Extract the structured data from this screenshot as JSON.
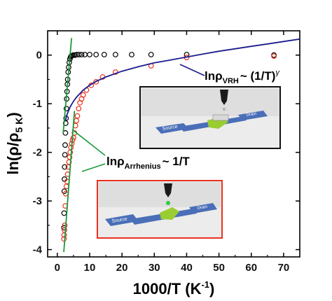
{
  "chart_data": {
    "type": "scatter",
    "xlabel_main": "1000/T (K",
    "xlabel_sup": "-1",
    "xlabel_close": ")",
    "ylabel_main": "ln(ρ/ρ",
    "ylabel_sub": "5 K",
    "ylabel_close": ")",
    "xlim": [
      -3,
      75
    ],
    "ylim": [
      -4.15,
      0.5
    ],
    "x_ticks": [
      0,
      10,
      20,
      30,
      40,
      50,
      60,
      70
    ],
    "x_tick_labels": [
      "0",
      "10",
      "20",
      "30",
      "40",
      "50",
      "60",
      "70"
    ],
    "y_ticks": [
      0,
      -1,
      -2,
      -3,
      -4
    ],
    "y_tick_labels": [
      "0",
      "-1",
      "-2",
      "-3",
      "-4"
    ],
    "series": [
      {
        "marker": "open-circle",
        "color": "#000000",
        "x": [
          2.05,
          2.1,
          2.15,
          2.2,
          2.27,
          2.35,
          2.42,
          2.5,
          2.6,
          2.7,
          2.8,
          2.9,
          3.0,
          3.1,
          3.2,
          3.35,
          3.5,
          3.7,
          3.9,
          4.1,
          4.3,
          4.6,
          5.0,
          5.5,
          6.0,
          6.7,
          7.5,
          8.5,
          10.0,
          12.0,
          14.5,
          18.0,
          23.0,
          29.0,
          40.0,
          67.0
        ],
        "y": [
          -3.55,
          -3.25,
          -2.8,
          -2.55,
          -2.3,
          -2.05,
          -1.85,
          -1.6,
          -1.4,
          -1.3,
          -1.1,
          -0.9,
          -0.75,
          -0.6,
          -0.5,
          -0.35,
          -0.25,
          -0.15,
          -0.08,
          -0.04,
          -0.02,
          -0.01,
          0.0,
          0.0,
          0.01,
          0.01,
          0.01,
          0.01,
          0.01,
          0.01,
          0.01,
          0.01,
          0.01,
          0.01,
          0.01,
          0.0
        ]
      },
      {
        "marker": "open-circle",
        "color": "#e8321e",
        "x": [
          2.05,
          2.12,
          2.2,
          2.3,
          2.45,
          2.6,
          2.8,
          3.0,
          3.2,
          3.4,
          3.6,
          3.8,
          4.0,
          4.2,
          4.45,
          4.7,
          5.0,
          5.3,
          5.6,
          5.9,
          6.2,
          6.6,
          7.0,
          7.5,
          8.0,
          9.0,
          10.5,
          12.0,
          14.0,
          18.0,
          29.0,
          40.0,
          67.0
        ],
        "y": [
          -3.78,
          -3.7,
          -3.6,
          -3.5,
          -3.1,
          -2.85,
          -2.7,
          -2.6,
          -2.45,
          -2.3,
          -2.2,
          -2.1,
          -2.0,
          -1.9,
          -1.82,
          -1.75,
          -1.7,
          -1.6,
          -1.45,
          -1.35,
          -1.25,
          -1.1,
          -0.98,
          -0.9,
          -0.82,
          -0.72,
          -0.62,
          -0.55,
          -0.45,
          -0.35,
          -0.22,
          -0.05,
          -0.02
        ]
      },
      {
        "type": "line",
        "color": "#1c1c8c",
        "x": [
          2.5,
          3,
          4,
          5,
          6,
          7,
          8,
          10,
          12,
          15,
          20,
          25,
          30,
          35,
          40,
          45,
          50,
          55,
          60,
          65,
          70,
          75
        ],
        "y": [
          -1.35,
          -1.22,
          -1.06,
          -0.95,
          -0.86,
          -0.79,
          -0.72,
          -0.62,
          -0.54,
          -0.45,
          -0.33,
          -0.24,
          -0.16,
          -0.1,
          -0.04,
          0.02,
          0.08,
          0.13,
          0.18,
          0.23,
          0.28,
          0.33
        ]
      },
      {
        "type": "line",
        "color": "#1a9a3a",
        "x": [
          2.0,
          5.3
        ],
        "y": [
          -4.05,
          -1.15
        ]
      },
      {
        "type": "line",
        "color": "#1a9a3a",
        "x": [
          1.8,
          4.4
        ],
        "y": [
          -1.6,
          0.35
        ]
      }
    ],
    "annotations": {
      "vrh": {
        "main": "lnρ",
        "sub": "VRH",
        "tail": "~ (1/T)",
        "sup": "γ"
      },
      "arrhenius": {
        "main": "lnρ",
        "sub": "Arrhenius",
        "tail": "~ 1/T"
      }
    },
    "inset_labels": {
      "source": "Source",
      "drain": "Drain"
    },
    "inset_colors": {
      "top_border": "#111111",
      "bottom_border": "#e8321e",
      "channel": "#4a6fb8",
      "flake": "#9acd32",
      "droplet": "#2ecc40"
    }
  }
}
